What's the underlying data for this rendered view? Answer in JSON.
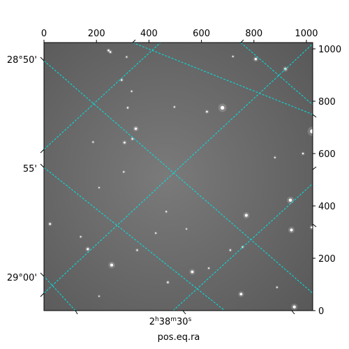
{
  "chart_data": {
    "type": "image",
    "pixel_axes": {
      "xlim": [
        0,
        1024
      ],
      "ylim": [
        0,
        1024
      ],
      "top_ticks": [
        0,
        200,
        400,
        600,
        800,
        1000
      ],
      "right_ticks": [
        0,
        200,
        400,
        600,
        800,
        1000
      ]
    },
    "world_axes": {
      "xlabel": "pos.eq.ra",
      "ra_label": {
        "h": "2",
        "m": "38",
        "s": "30"
      },
      "dec_labels": [
        "28°50'",
        "55'",
        "29°00'"
      ]
    },
    "grid": true,
    "grid_color": "#00e5e5",
    "colors": {
      "background": "#7a7a7a",
      "star": "#ffffff"
    },
    "stars": [
      {
        "x": 246,
        "y": 994,
        "m": 1.3
      },
      {
        "x": 253,
        "y": 988,
        "m": 1.3
      },
      {
        "x": 315,
        "y": 969,
        "m": 1.0
      },
      {
        "x": 720,
        "y": 971,
        "m": 1.0
      },
      {
        "x": 807,
        "y": 961,
        "m": 1.7
      },
      {
        "x": 920,
        "y": 923,
        "m": 1.7
      },
      {
        "x": 296,
        "y": 881,
        "m": 1.2
      },
      {
        "x": 334,
        "y": 838,
        "m": 1.0
      },
      {
        "x": 680,
        "y": 775,
        "m": 2.7
      },
      {
        "x": 621,
        "y": 760,
        "m": 1.3
      },
      {
        "x": 319,
        "y": 775,
        "m": 1.1
      },
      {
        "x": 350,
        "y": 695,
        "m": 1.8
      },
      {
        "x": 307,
        "y": 642,
        "m": 1.4
      },
      {
        "x": 337,
        "y": 656,
        "m": 1.2
      },
      {
        "x": 187,
        "y": 644,
        "m": 1.0
      },
      {
        "x": 1022,
        "y": 685,
        "m": 3.0
      },
      {
        "x": 987,
        "y": 600,
        "m": 1.2
      },
      {
        "x": 304,
        "y": 530,
        "m": 1.0
      },
      {
        "x": 939,
        "y": 422,
        "m": 2.3
      },
      {
        "x": 771,
        "y": 364,
        "m": 2.1
      },
      {
        "x": 23,
        "y": 331,
        "m": 1.4
      },
      {
        "x": 943,
        "y": 308,
        "m": 2.1
      },
      {
        "x": 1020,
        "y": 318,
        "m": 1.4
      },
      {
        "x": 167,
        "y": 235,
        "m": 1.6
      },
      {
        "x": 355,
        "y": 231,
        "m": 1.1
      },
      {
        "x": 258,
        "y": 174,
        "m": 2.2
      },
      {
        "x": 628,
        "y": 162,
        "m": 1.0
      },
      {
        "x": 565,
        "y": 148,
        "m": 1.9
      },
      {
        "x": 472,
        "y": 108,
        "m": 1.2
      },
      {
        "x": 751,
        "y": 63,
        "m": 1.9
      },
      {
        "x": 954,
        "y": 14,
        "m": 2.2
      },
      {
        "x": 210,
        "y": 55,
        "m": 0.9
      },
      {
        "x": 888,
        "y": 89,
        "m": 1.0
      },
      {
        "x": 543,
        "y": 312,
        "m": 0.9
      },
      {
        "x": 426,
        "y": 296,
        "m": 1.0
      },
      {
        "x": 710,
        "y": 231,
        "m": 1.1
      },
      {
        "x": 140,
        "y": 282,
        "m": 1.0
      },
      {
        "x": 497,
        "y": 778,
        "m": 1.0
      },
      {
        "x": 880,
        "y": 585,
        "m": 1.0
      },
      {
        "x": 757,
        "y": 243,
        "m": 1.1
      },
      {
        "x": 210,
        "y": 470,
        "m": 0.9
      },
      {
        "x": 466,
        "y": 378,
        "m": 1.0
      }
    ]
  }
}
